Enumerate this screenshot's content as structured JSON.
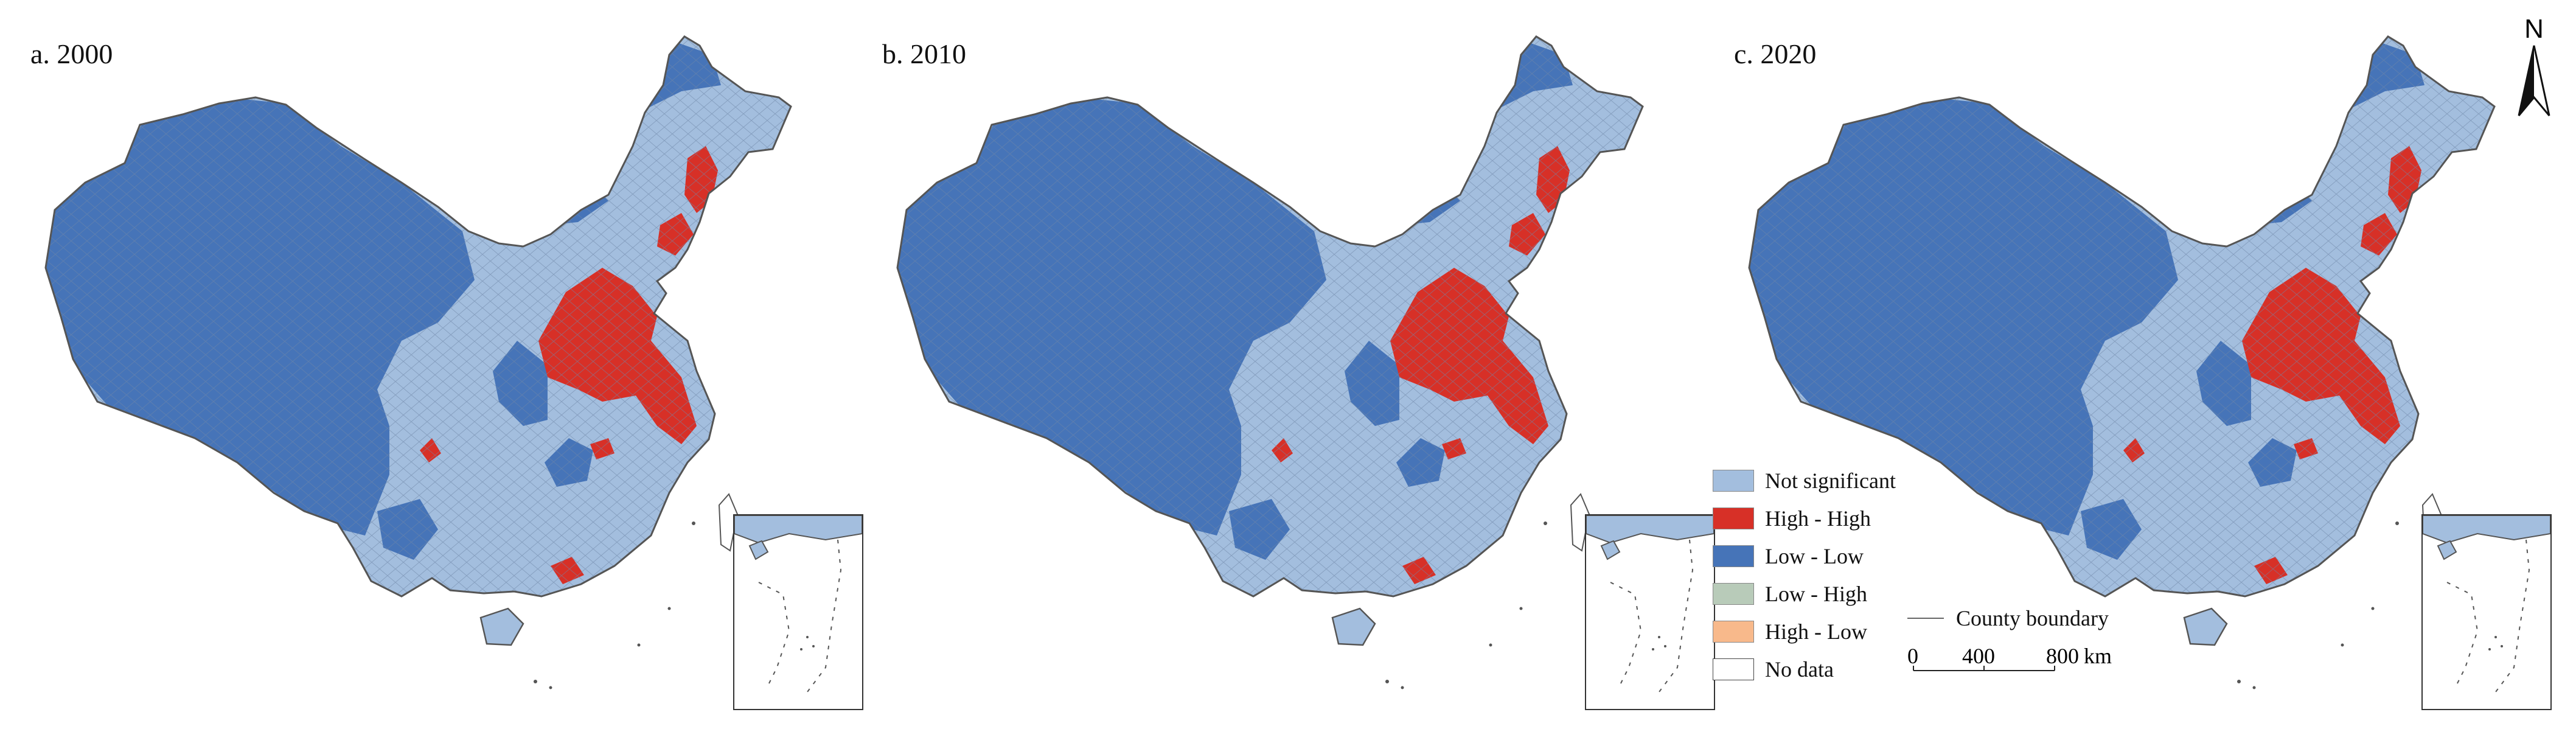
{
  "panels": [
    {
      "title": "a. 2000"
    },
    {
      "title": "b. 2010"
    },
    {
      "title": "c. 2020"
    }
  ],
  "legend": {
    "items": [
      {
        "label": "Not significant",
        "color": "#a3bede"
      },
      {
        "label": "High - High",
        "color": "#d73027"
      },
      {
        "label": "Low - Low",
        "color": "#4674b8"
      },
      {
        "label": "Low - High",
        "color": "#b8cbb9"
      },
      {
        "label": "High - Low",
        "color": "#f8b98b"
      },
      {
        "label": "No data",
        "color": "#ffffff"
      }
    ],
    "boundary_label": "County boundary"
  },
  "scale_bar": {
    "ticks": [
      "0",
      "400",
      "800"
    ],
    "unit": "km"
  },
  "north_arrow": {
    "label": "N"
  },
  "colors": {
    "outline": "#555555",
    "county_line": "#6f87a8"
  }
}
